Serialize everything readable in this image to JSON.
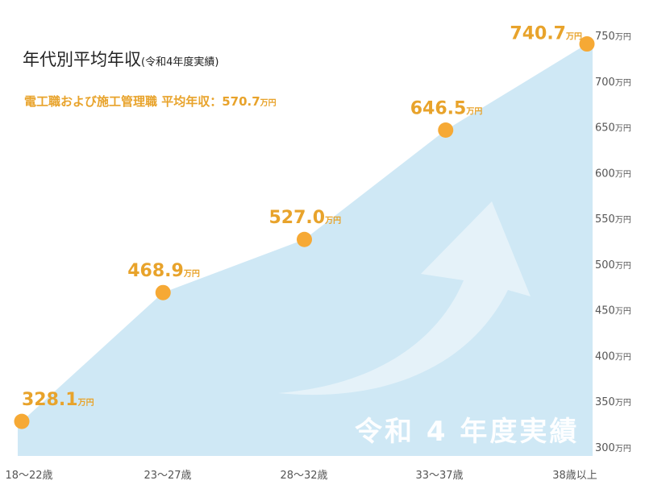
{
  "header": {
    "title": "年代別平均年収",
    "title_sub": "(令和4年度実績)",
    "subtitle": "電工職および施工管理職 平均年収：570.7",
    "subtitle_unit": "万円"
  },
  "watermark": "令和 4 年度実績",
  "colors": {
    "accent": "#e8a32b",
    "area": "#cfe8f5",
    "point": "#f6a935"
  },
  "chart_data": {
    "type": "area",
    "title": "年代別平均年収",
    "categories": [
      "18～22歳",
      "23～27歳",
      "28～32歳",
      "33～37歳",
      "38歳以上"
    ],
    "series": [
      {
        "values": [
          328.1,
          468.9,
          527.0,
          646.5,
          740.7
        ]
      }
    ],
    "value_labels": [
      "328.1",
      "468.9",
      "527.0",
      "646.5",
      "740.7"
    ],
    "value_unit": "万円",
    "ylim": [
      300,
      750
    ],
    "yticks": [
      300,
      350,
      400,
      450,
      500,
      550,
      600,
      650,
      700,
      750
    ],
    "ytick_unit": "万円",
    "grid": false,
    "legend": "none"
  }
}
